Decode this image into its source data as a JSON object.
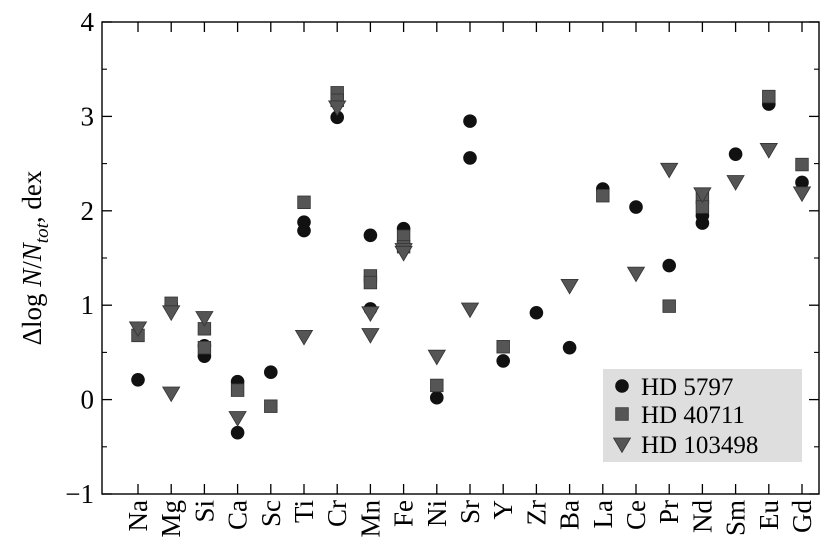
{
  "chart_data": {
    "type": "scatter",
    "title": "",
    "xlabel": "",
    "ylabel": "Δlog N/N_tot, dex",
    "ylabel_parts": {
      "prefix": "Δlog ",
      "n": "N",
      "slash": "/",
      "ntot_n": "N",
      "ntot_sub": "tot",
      "suffix": ", dex"
    },
    "ylim": [
      -1,
      4
    ],
    "yticks": [
      -1,
      0,
      1,
      2,
      3,
      4
    ],
    "ytick_labels": [
      "−1",
      "0",
      "1",
      "2",
      "3",
      "4"
    ],
    "grid": false,
    "legend_position": "bottom-right",
    "categories": [
      "Na",
      "Mg",
      "Si",
      "Ca",
      "Sc",
      "Ti",
      "Cr",
      "Mn",
      "Fe",
      "Ni",
      "Sr",
      "Y",
      "Zr",
      "Ba",
      "La",
      "Ce",
      "Pr",
      "Nd",
      "Sm",
      "Eu",
      "Gd"
    ],
    "series": [
      {
        "name": "HD 5797",
        "marker": "circle",
        "color": "#111111",
        "points": [
          [
            "Na",
            0.21
          ],
          [
            "Mg",
            1.01
          ],
          [
            "Si",
            0.46
          ],
          [
            "Si",
            0.57
          ],
          [
            "Ca",
            0.19
          ],
          [
            "Ca",
            -0.35
          ],
          [
            "Sc",
            0.29
          ],
          [
            "Ti",
            1.88
          ],
          [
            "Ti",
            1.79
          ],
          [
            "Cr",
            2.99
          ],
          [
            "Mn",
            1.74
          ],
          [
            "Mn",
            0.96
          ],
          [
            "Fe",
            1.81
          ],
          [
            "Ni",
            0.02
          ],
          [
            "Sr",
            2.95
          ],
          [
            "Sr",
            2.56
          ],
          [
            "Y",
            0.41
          ],
          [
            "Zr",
            0.92
          ],
          [
            "Ba",
            0.55
          ],
          [
            "La",
            2.23
          ],
          [
            "Ce",
            2.04
          ],
          [
            "Pr",
            1.42
          ],
          [
            "Nd",
            1.95
          ],
          [
            "Nd",
            1.87
          ],
          [
            "Sm",
            2.6
          ],
          [
            "Eu",
            3.13
          ],
          [
            "Gd",
            2.3
          ]
        ]
      },
      {
        "name": "HD 40711",
        "marker": "square",
        "color": "#555555",
        "points": [
          [
            "Na",
            0.68
          ],
          [
            "Mg",
            1.02
          ],
          [
            "Si",
            0.75
          ],
          [
            "Si",
            0.55
          ],
          [
            "Ca",
            0.1
          ],
          [
            "Sc",
            -0.07
          ],
          [
            "Ti",
            2.09
          ],
          [
            "Cr",
            3.25
          ],
          [
            "Cr",
            3.17
          ],
          [
            "Mn",
            1.31
          ],
          [
            "Mn",
            1.24
          ],
          [
            "Fe",
            1.73
          ],
          [
            "Fe",
            1.62
          ],
          [
            "Ni",
            0.15
          ],
          [
            "Y",
            0.56
          ],
          [
            "La",
            2.16
          ],
          [
            "Pr",
            0.99
          ],
          [
            "Nd",
            2.14
          ],
          [
            "Nd",
            2.04
          ],
          [
            "Eu",
            3.21
          ],
          [
            "Gd",
            2.49
          ]
        ]
      },
      {
        "name": "HD 103498",
        "marker": "triangle-down",
        "color": "#555555",
        "points": [
          [
            "Na",
            0.76
          ],
          [
            "Mg",
            0.93
          ],
          [
            "Mg",
            0.07
          ],
          [
            "Si",
            0.87
          ],
          [
            "Ca",
            -0.19
          ],
          [
            "Ti",
            0.67
          ],
          [
            "Cr",
            3.1
          ],
          [
            "Mn",
            0.92
          ],
          [
            "Mn",
            0.69
          ],
          [
            "Fe",
            1.59
          ],
          [
            "Fe",
            1.56
          ],
          [
            "Ni",
            0.46
          ],
          [
            "Sr",
            0.96
          ],
          [
            "Ba",
            1.21
          ],
          [
            "Ce",
            1.34
          ],
          [
            "Pr",
            2.44
          ],
          [
            "Nd",
            2.18
          ],
          [
            "Sm",
            2.31
          ],
          [
            "Eu",
            2.65
          ],
          [
            "Gd",
            2.19
          ]
        ]
      }
    ]
  }
}
